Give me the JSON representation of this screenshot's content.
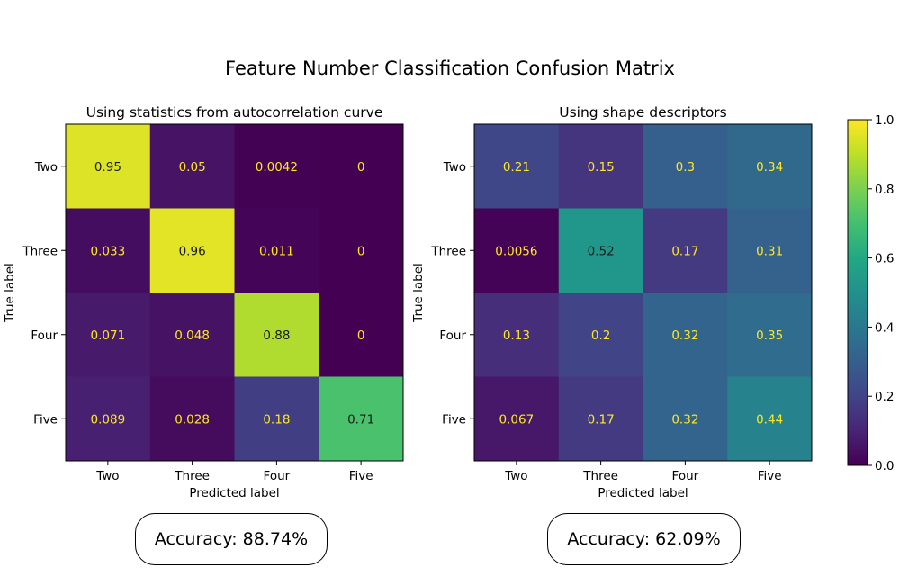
{
  "suptitle": "Feature Number Classification Confusion Matrix",
  "chart_data": [
    {
      "type": "heatmap",
      "title": "Using statistics from autocorrelation curve",
      "xlabel": "Predicted label",
      "ylabel": "True label",
      "x_categories": [
        "Two",
        "Three",
        "Four",
        "Five"
      ],
      "y_categories": [
        "Two",
        "Three",
        "Four",
        "Five"
      ],
      "values": [
        [
          0.95,
          0.05,
          0.0042,
          0
        ],
        [
          0.033,
          0.96,
          0.011,
          0
        ],
        [
          0.071,
          0.048,
          0.88,
          0
        ],
        [
          0.089,
          0.028,
          0.18,
          0.71
        ]
      ],
      "value_labels": [
        [
          "0.95",
          "0.05",
          "0.0042",
          "0"
        ],
        [
          "0.033",
          "0.96",
          "0.011",
          "0"
        ],
        [
          "0.071",
          "0.048",
          "0.88",
          "0"
        ],
        [
          "0.089",
          "0.028",
          "0.18",
          "0.71"
        ]
      ],
      "colormap": "viridis",
      "vlim": [
        0,
        1
      ]
    },
    {
      "type": "heatmap",
      "title": "Using shape descriptors",
      "xlabel": "Predicted label",
      "ylabel": "True label",
      "x_categories": [
        "Two",
        "Three",
        "Four",
        "Five"
      ],
      "y_categories": [
        "Two",
        "Three",
        "Four",
        "Five"
      ],
      "values": [
        [
          0.21,
          0.15,
          0.3,
          0.34
        ],
        [
          0.0056,
          0.52,
          0.17,
          0.31
        ],
        [
          0.13,
          0.2,
          0.32,
          0.35
        ],
        [
          0.067,
          0.17,
          0.32,
          0.44
        ]
      ],
      "value_labels": [
        [
          "0.21",
          "0.15",
          "0.3",
          "0.34"
        ],
        [
          "0.0056",
          "0.52",
          "0.17",
          "0.31"
        ],
        [
          "0.13",
          "0.2",
          "0.32",
          "0.35"
        ],
        [
          "0.067",
          "0.17",
          "0.32",
          "0.44"
        ]
      ],
      "colormap": "viridis",
      "vlim": [
        0,
        1
      ]
    }
  ],
  "colorbar": {
    "ticks": [
      0.0,
      0.2,
      0.4,
      0.6,
      0.8,
      1.0
    ],
    "tick_labels": [
      "0.0",
      "0.2",
      "0.4",
      "0.6",
      "0.8",
      "1.0"
    ]
  },
  "accuracy_boxes": [
    "Accuracy: 88.74%",
    "Accuracy: 62.09%"
  ]
}
